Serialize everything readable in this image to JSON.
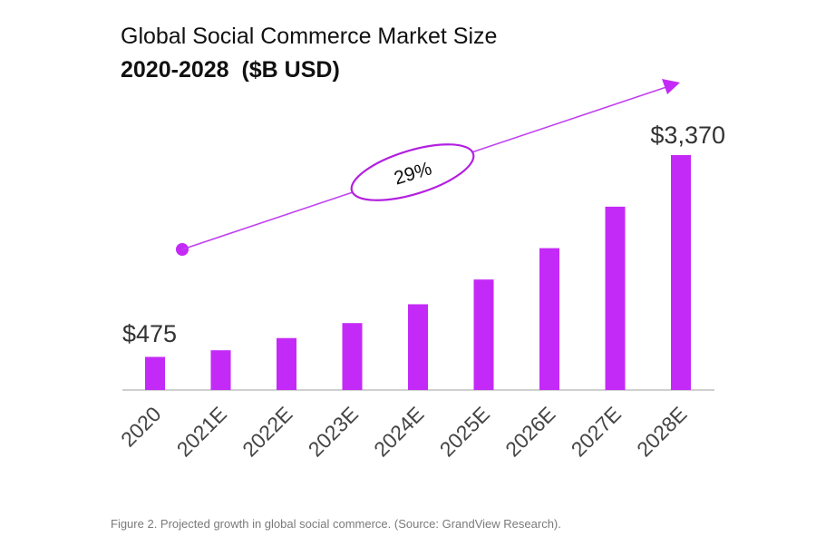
{
  "chart_data": {
    "type": "bar",
    "title": "Global Social Commerce Market Size",
    "subtitle": "2020-2028  ($B USD)",
    "categories": [
      "2020",
      "2021E",
      "2022E",
      "2023E",
      "2024E",
      "2025E",
      "2026E",
      "2027E",
      "2028E"
    ],
    "values": [
      475,
      570,
      745,
      960,
      1230,
      1585,
      2035,
      2630,
      3370
    ],
    "data_labels": {
      "first": "$475",
      "last": "$3,370"
    },
    "annotation": "29%",
    "xlabel": "",
    "ylabel": "",
    "ylim": [
      0,
      3370
    ],
    "grid": false,
    "bar_color": "#c42af7",
    "arrow_color": "#c040f0"
  },
  "caption": "Figure 2. Projected growth in global social commerce. (Source: GrandView Research)."
}
